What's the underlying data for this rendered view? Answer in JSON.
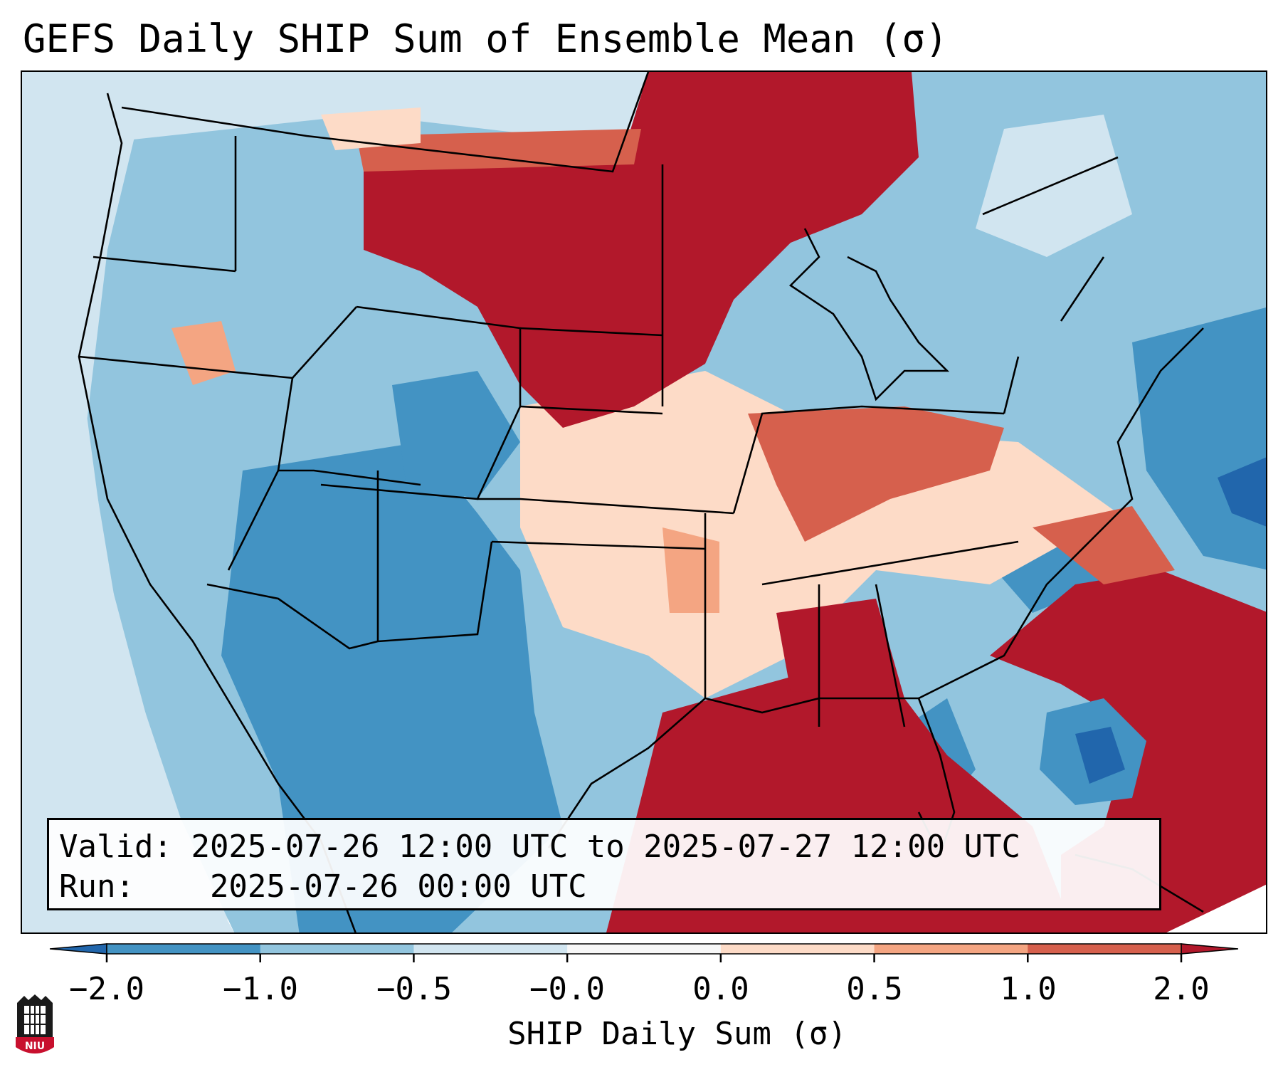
{
  "title": "GEFS Daily SHIP Sum of Ensemble Mean (σ)",
  "info": {
    "valid_label": "Valid:",
    "valid_value": "2025-07-26 12:00 UTC to 2025-07-27 12:00 UTC",
    "run_label": "Run:",
    "run_value": "2025-07-26 00:00 UTC"
  },
  "colorbar": {
    "label": "SHIP Daily Sum (σ)",
    "ticks": [
      "−2.0",
      "−1.0",
      "−0.5",
      "−0.0",
      "0.0",
      "0.5",
      "1.0",
      "2.0"
    ],
    "bounds": [
      -2.0,
      -1.0,
      -0.5,
      -0.0,
      0.0,
      0.5,
      1.0,
      2.0
    ],
    "colors": [
      "#2166ac",
      "#4393c3",
      "#92c5de",
      "#d1e5f0",
      "#f7f7f7",
      "#fddbc7",
      "#f4a582",
      "#d6604d",
      "#b2182b"
    ],
    "extend": "both"
  },
  "logo": {
    "text": "NIU",
    "color": "#c8102e"
  },
  "colors": {
    "strong_negative": "#2166ac",
    "negative": "#4393c3",
    "weak_negative": "#92c5de",
    "near_zero_neg": "#d1e5f0",
    "near_zero_pos": "#fddbc7",
    "positive": "#f4a582",
    "strong_positive": "#d6604d",
    "max_positive": "#b2182b"
  }
}
